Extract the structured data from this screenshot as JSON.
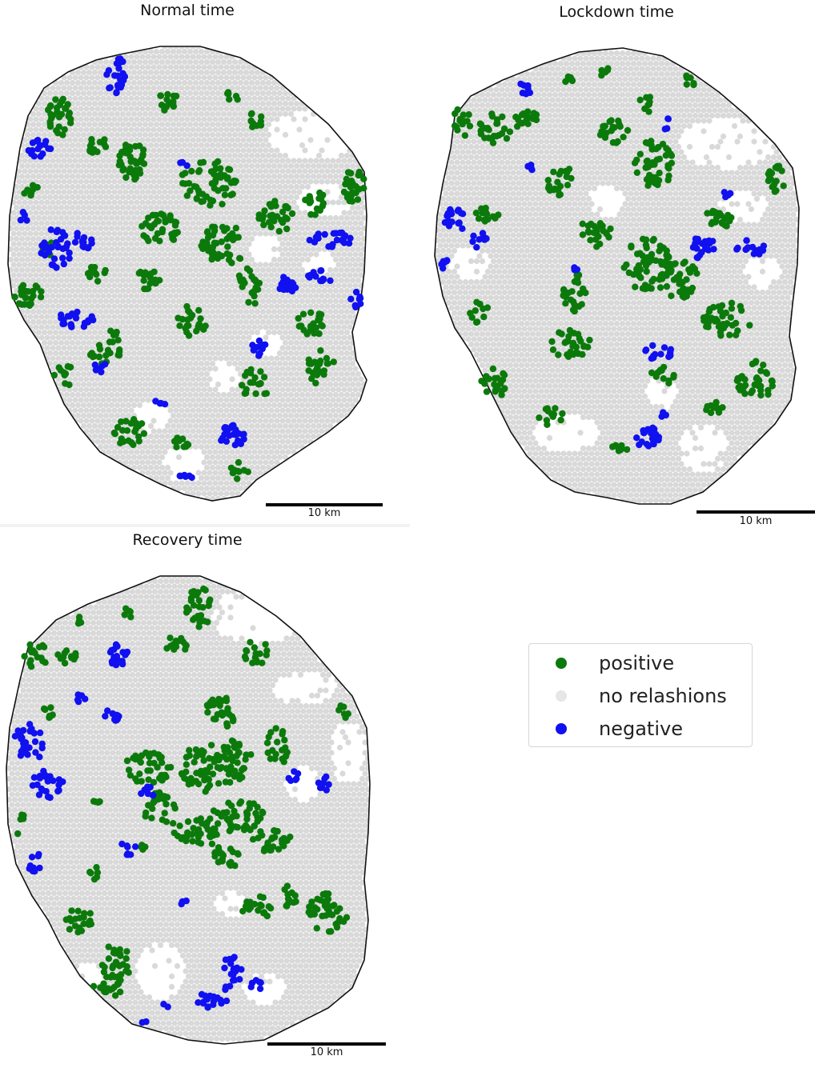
{
  "panels": [
    {
      "title": "Normal time",
      "scalebar_label": "10 km"
    },
    {
      "title": "Lockdown time",
      "scalebar_label": "10 km"
    },
    {
      "title": "Recovery time",
      "scalebar_label": "10 km"
    }
  ],
  "legend": {
    "items": [
      {
        "label": "positive",
        "color": "#0b7a0b",
        "icon": "green-dot-icon"
      },
      {
        "label": "no relashions",
        "color": "#e6e6e6",
        "icon": "gray-dot-icon"
      },
      {
        "label": "negative",
        "color": "#1010f0",
        "icon": "blue-dot-icon"
      }
    ]
  },
  "colors": {
    "positive": "#0b7a0b",
    "no_relation": "#d9d9d9",
    "negative": "#1010f0",
    "outline": "#111111"
  }
}
